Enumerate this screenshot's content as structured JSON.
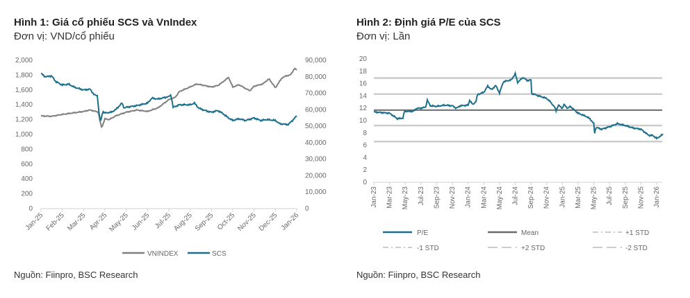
{
  "colors": {
    "scs": "#1b6f8a",
    "vnindex": "#808080",
    "mean": "#6b6b6b",
    "std": "#cccccc",
    "axis": "#d0d0d0"
  },
  "chart_data": [
    {
      "type": "line",
      "title": "Hình 1: Giá cổ phiếu SCS và VnIndex",
      "unit": "Đơn vị: VND/cổ phiếu",
      "source": "Nguồn: Fiinpro, BSC Research",
      "x_ticks": [
        "Jan-25",
        "Feb-25",
        "Mar-25",
        "Apr-25",
        "May-25",
        "Jun-25",
        "Jul-25",
        "Aug-25",
        "Sep-25",
        "Oct-25",
        "Nov-25",
        "Dec-25",
        "Jan-26"
      ],
      "y_left": {
        "ylim": [
          0,
          2000
        ],
        "ticks": [
          "0",
          "200",
          "400",
          "600",
          "800",
          "1,000",
          "1,200",
          "1,400",
          "1,600",
          "1,800",
          "2,000"
        ]
      },
      "y_right": {
        "ylim": [
          0,
          90000
        ],
        "ticks": [
          "0",
          "10,000",
          "20,000",
          "30,000",
          "40,000",
          "50,000",
          "60,000",
          "70,000",
          "80,000",
          "90,000"
        ]
      },
      "legend": "bottom",
      "series": [
        {
          "name": "VNINDEX",
          "axis": "left",
          "x_months": [
            0,
            0.5,
            1,
            1.5,
            2,
            2.3,
            2.7,
            2.75,
            2.85,
            3,
            3.2,
            3.5,
            4,
            4.5,
            5,
            5.5,
            6,
            6.3,
            6.5,
            7,
            7.3,
            7.5,
            8,
            8.3,
            8.5,
            8.8,
            9,
            9.3,
            9.6,
            9.8,
            10,
            10.4,
            10.7,
            11,
            11.3,
            11.5,
            11.7,
            11.9,
            12
          ],
          "values": [
            1250,
            1245,
            1270,
            1290,
            1310,
            1330,
            1300,
            1200,
            1090,
            1210,
            1200,
            1250,
            1300,
            1330,
            1310,
            1360,
            1470,
            1500,
            1580,
            1640,
            1680,
            1670,
            1640,
            1660,
            1700,
            1770,
            1640,
            1670,
            1620,
            1590,
            1650,
            1680,
            1750,
            1630,
            1760,
            1790,
            1800,
            1890,
            1870
          ]
        },
        {
          "name": "SCS",
          "axis": "right",
          "x_months": [
            0,
            0.2,
            0.5,
            0.7,
            1,
            1.3,
            1.6,
            2,
            2.3,
            2.5,
            2.65,
            2.72,
            2.8,
            2.9,
            3,
            3.3,
            3.5,
            3.8,
            3.9,
            4,
            4.5,
            5,
            5.2,
            5.5,
            6,
            6.1,
            6.2,
            6.5,
            7,
            7.2,
            7.4,
            7.7,
            8,
            8.3,
            8.5,
            8.8,
            9,
            9.3,
            9.6,
            10,
            10.3,
            10.6,
            11,
            11.2,
            11.6,
            11.8,
            11.95,
            12
          ],
          "values": [
            82000,
            80000,
            80500,
            77000,
            75000,
            75500,
            73500,
            72000,
            72500,
            69000,
            68500,
            58000,
            53000,
            59000,
            58000,
            58500,
            60000,
            64000,
            61000,
            61500,
            62500,
            64000,
            67000,
            66500,
            68000,
            69000,
            61500,
            63000,
            63000,
            64000,
            61000,
            59500,
            58500,
            59500,
            58000,
            55000,
            53500,
            54500,
            53500,
            55000,
            53500,
            54000,
            53500,
            51500,
            51000,
            53500,
            55500,
            56500
          ]
        }
      ]
    },
    {
      "type": "line",
      "title": "Hình 2: Định giá P/E của SCS",
      "unit": "Đơn vị: Lần",
      "source": "Nguồn: Fiinpro, BSC Research",
      "x_ticks": [
        "Jan-23",
        "Mar-23",
        "May-23",
        "Jul-23",
        "Sep-23",
        "Nov-23",
        "Jan-24",
        "Mar-24",
        "May-24",
        "Jul-24",
        "Sep-24",
        "Nov-24",
        "Jan-25",
        "Mar-25",
        "May-25",
        "Jul-25",
        "Sep-25",
        "Nov-25",
        "Jan-26"
      ],
      "y_ticks": [
        "0",
        "2",
        "4",
        "6",
        "8",
        "10",
        "12",
        "14",
        "16",
        "18",
        "20"
      ],
      "ylim": [
        0,
        20
      ],
      "legend": "bottom",
      "bands": {
        "mean": 11.7,
        "plus1": 14.3,
        "minus1": 9.2,
        "plus2": 16.9,
        "minus2": 6.6
      },
      "series": [
        {
          "name": "P/E",
          "x_months": [
            0,
            1,
            2,
            3,
            3.7,
            3.9,
            5,
            5.5,
            6,
            6.6,
            6.8,
            7.2,
            8,
            9,
            10,
            10.5,
            11,
            12,
            12.2,
            12.6,
            13,
            13.2,
            14,
            14.5,
            15,
            15.5,
            16,
            16.5,
            17.5,
            18,
            18.3,
            19,
            19.5,
            20,
            20.1,
            21,
            22,
            22.5,
            23,
            23.2,
            23.5,
            24,
            24.2,
            24.7,
            25,
            26,
            27,
            27.5,
            28,
            28.1,
            28.3,
            29,
            30,
            31,
            32,
            33,
            34,
            35,
            35.5,
            36,
            36.5,
            36.8
          ],
          "values": [
            11.4,
            11.3,
            11.2,
            10.3,
            10.4,
            11.5,
            11.5,
            12,
            12.0,
            12.2,
            13.3,
            12.4,
            12.3,
            12.5,
            12.4,
            12.0,
            12.4,
            12.5,
            13.3,
            12.6,
            13.1,
            14.2,
            14.6,
            15.6,
            15.0,
            15.7,
            14.5,
            16.3,
            16.6,
            17.6,
            16.2,
            17.0,
            16.5,
            16.6,
            14.4,
            14.0,
            13.6,
            13.0,
            12.2,
            11.6,
            12.5,
            12.0,
            12.6,
            12.0,
            12.3,
            11.2,
            10.7,
            10.3,
            9.5,
            8.0,
            8.9,
            8.6,
            9.0,
            9.5,
            9.2,
            8.8,
            8.6,
            7.6,
            7.6,
            7.1,
            7.5,
            7.8
          ]
        }
      ],
      "legend_entries": [
        "P/E",
        "Mean",
        "+1 STD",
        "-1 STD",
        "+2 STD",
        "-2 STD"
      ]
    }
  ]
}
